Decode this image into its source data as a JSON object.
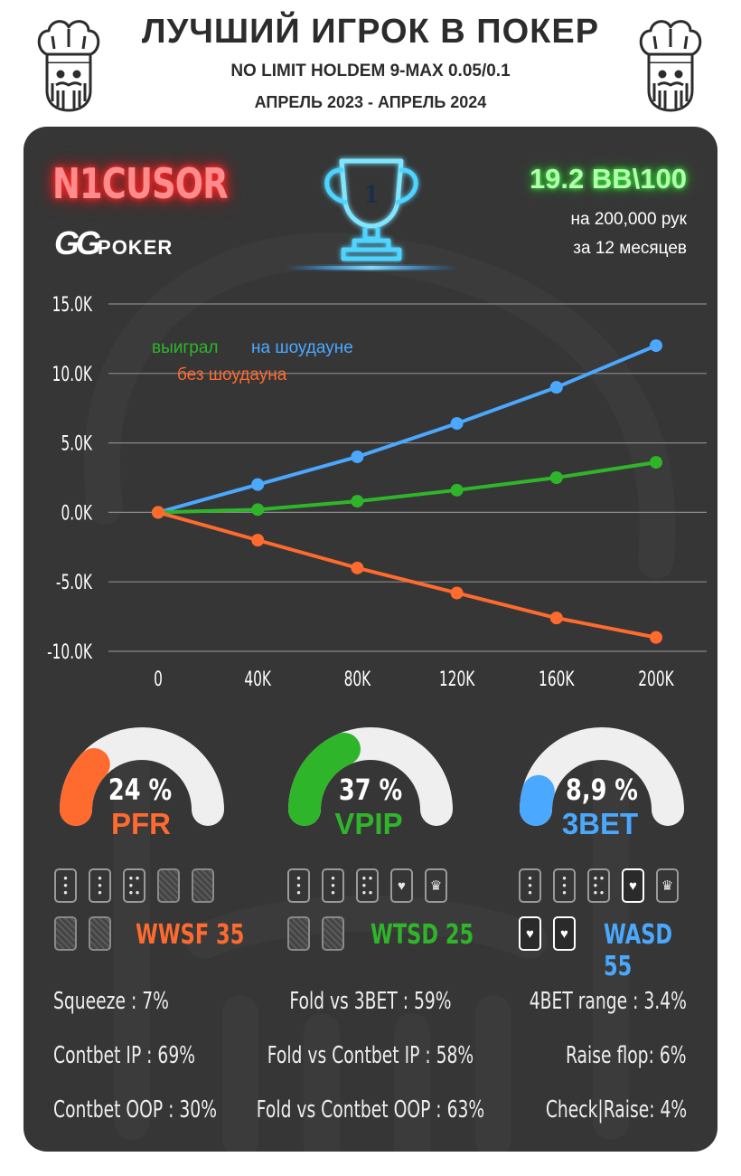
{
  "header": {
    "title": "ЛУЧШИЙ ИГРОК В ПОКЕР",
    "subtitle": "NO LIMIT HOLDEM 9-MAX 0.05/0.1",
    "period": "АПРЕЛЬ 2023 - АПРЕЛЬ 2024"
  },
  "player": {
    "name": "N1CUSOR",
    "site_gg": "GG",
    "site_poker": "POKER",
    "rank": "1",
    "winrate": "19.2 BB\\100",
    "hands_text": "на 200,000 рук",
    "months_text": "за  12 месяцев"
  },
  "colors": {
    "showdown": "#4aa8ff",
    "won": "#2fb52a",
    "non_showdown": "#ff6a2e",
    "panel": "#363636"
  },
  "chart_data": {
    "type": "line",
    "x": [
      0,
      40000,
      80000,
      120000,
      160000,
      200000
    ],
    "x_tick_labels": [
      "0",
      "40K",
      "80K",
      "120K",
      "160K",
      "200K"
    ],
    "y_ticks": [
      15000,
      10000,
      5000,
      0,
      -5000,
      -10000
    ],
    "y_tick_labels": [
      "15.0K",
      "10.0K",
      "5.0K",
      "0.0K",
      "-5.0K",
      "-10.0K"
    ],
    "ylim": [
      -10000,
      15000
    ],
    "grid": true,
    "legend": {
      "won": "выиграл",
      "showdown": "на шоудауне",
      "non_showdown": "без шоудауна"
    },
    "series": [
      {
        "key": "showdown",
        "name": "на шоудауне",
        "color": "#4aa8ff",
        "values": [
          0,
          2000,
          4000,
          6400,
          9000,
          12000
        ]
      },
      {
        "key": "won",
        "name": "выиграл",
        "color": "#2fb52a",
        "values": [
          0,
          200,
          800,
          1600,
          2500,
          3600
        ]
      },
      {
        "key": "non_showdown",
        "name": "без шоудауна",
        "color": "#ff6a2e",
        "values": [
          0,
          -2000,
          -4000,
          -5800,
          -7600,
          -9000
        ]
      }
    ]
  },
  "gauges": [
    {
      "label": "PFR",
      "value_text": "24 %",
      "value": 0.24,
      "color": "#ff6a2e"
    },
    {
      "label": "VPIP",
      "value_text": "37 %",
      "value": 0.37,
      "color": "#2fb52a"
    },
    {
      "label": "3BET",
      "value_text": "8,9 %",
      "value": 0.089,
      "color": "#4aa8ff"
    }
  ],
  "card_stats": [
    {
      "label": "WWSF 35",
      "color": "#ff6a2e"
    },
    {
      "label": "WTSD 25",
      "color": "#2fb52a"
    },
    {
      "label": "WASD 55",
      "color": "#4aa8ff"
    }
  ],
  "stats_left": [
    "Squeeze : 7%",
    "Contbet IP : 69%",
    "Contbet OOP : 30%"
  ],
  "stats_center": [
    "Fold vs 3BET : 59%",
    "Fold vs Contbet IP : 58%",
    "Fold vs Contbet OOP : 63%"
  ],
  "stats_right": [
    "4BET range : 3.4%",
    "Raise flop: 6%",
    "Check|Raise: 4%"
  ],
  "icons": {
    "mascot": "chef-king-icon",
    "trophy": "trophy-icon",
    "heart": "heart-icon",
    "crown": "crown-icon"
  }
}
